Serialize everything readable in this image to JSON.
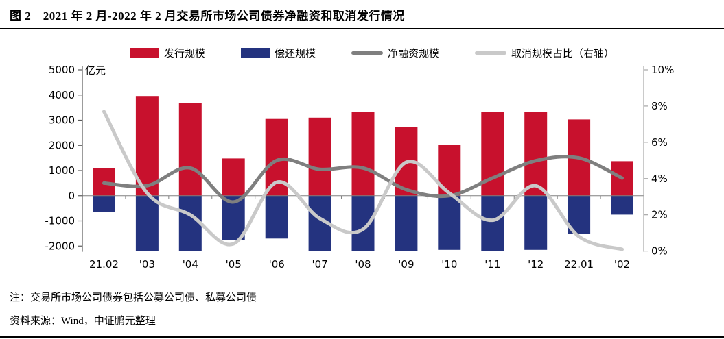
{
  "header": {
    "title": "图 2　2021 年 2 月-2022 年 2 月交易所市场公司债券净融资和取消发行情况"
  },
  "notes": {
    "note": "注：交易所市场公司债券包括公募公司债、私募公司债",
    "source": "资料来源：Wind，中证鹏元整理"
  },
  "chart_data": {
    "type": "bar",
    "subtype": "combo-bar-line-dual-axis",
    "unit_label": "亿元",
    "categories": [
      "21.02",
      "'03",
      "'04",
      "'05",
      "'06",
      "'07",
      "'08",
      "'09",
      "'10",
      "'11",
      "'12",
      "22.01",
      "'02"
    ],
    "series": [
      {
        "key": "issuance",
        "name": "发行规模",
        "type": "bar",
        "axis": "left",
        "color": "#C8112D",
        "values": [
          1100,
          3960,
          3680,
          1480,
          3050,
          3100,
          3330,
          2720,
          2030,
          3320,
          3340,
          3030,
          1370
        ]
      },
      {
        "key": "repayment",
        "name": "偿还规模",
        "type": "bar",
        "axis": "left",
        "color": "#24337F",
        "values": [
          -630,
          -2200,
          -2200,
          -1750,
          -1700,
          -2200,
          -2200,
          -2200,
          -2150,
          -2200,
          -2150,
          -1520,
          -750
        ]
      },
      {
        "key": "net-financing",
        "name": "净融资规模",
        "type": "line",
        "axis": "left",
        "color": "#7F7F7F",
        "values": [
          500,
          400,
          1100,
          -250,
          1400,
          1050,
          1100,
          240,
          0,
          700,
          1390,
          1500,
          700
        ]
      },
      {
        "key": "cancel-ratio",
        "name": "取消规模占比（右轴）",
        "type": "line",
        "axis": "right",
        "color": "#C9C9C9",
        "values": [
          7.7,
          3.2,
          2.0,
          0.4,
          3.8,
          1.8,
          1.2,
          4.9,
          3.2,
          1.7,
          3.6,
          0.8,
          0.1
        ]
      }
    ],
    "left_axis": {
      "ticks": [
        5000,
        4000,
        3000,
        2000,
        1000,
        0,
        -1000,
        -2000
      ],
      "max": 5000,
      "min": -2200,
      "grid": false
    },
    "right_axis": {
      "ticks": [
        "10%",
        "8%",
        "6%",
        "4%",
        "2%",
        "0%"
      ],
      "max": 10,
      "min": 0
    },
    "legend_position": "top-center",
    "title": "2021 年 2 月-2022 年 2 月交易所市场公司债券净融资和取消发行情况"
  }
}
